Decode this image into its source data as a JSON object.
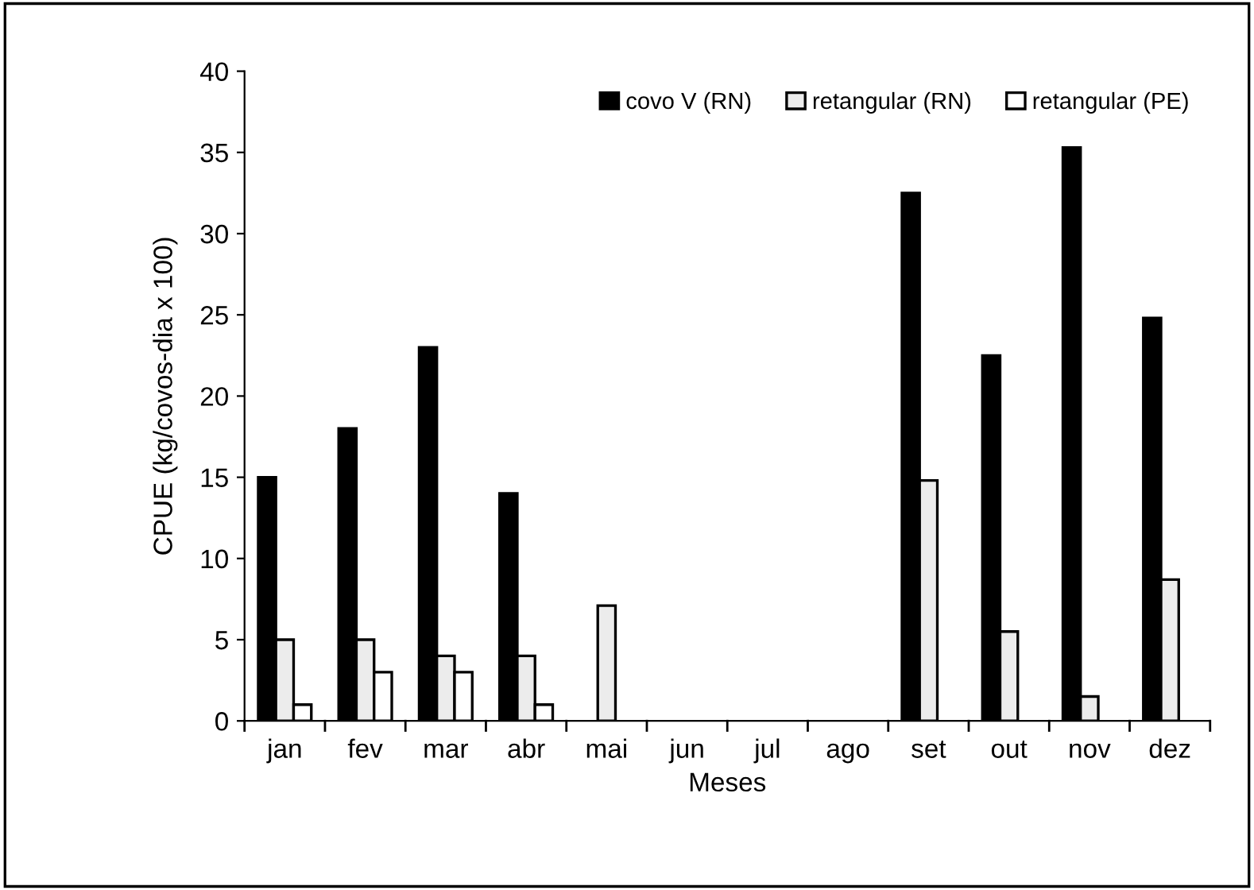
{
  "chart_data": {
    "type": "bar",
    "xlabel": "Meses",
    "ylabel": "CPUE (kg/covos-dia x 100)",
    "categories": [
      "jan",
      "fev",
      "mar",
      "abr",
      "mai",
      "jun",
      "jul",
      "ago",
      "set",
      "out",
      "nov",
      "dez"
    ],
    "series": [
      {
        "name": "covo V (RN)",
        "color": "#000000",
        "values": [
          15,
          18,
          23,
          14,
          null,
          null,
          null,
          null,
          32.5,
          22.5,
          35.3,
          24.8
        ]
      },
      {
        "name": "retangular (RN)",
        "color": "#ececec",
        "values": [
          5,
          5,
          4,
          4,
          7.1,
          null,
          null,
          null,
          14.8,
          5.5,
          1.5,
          8.7
        ]
      },
      {
        "name": "retangular (PE)",
        "color": "#ffffff",
        "values": [
          1,
          3,
          3,
          1,
          null,
          null,
          null,
          null,
          null,
          null,
          null,
          null
        ]
      }
    ],
    "ylim": [
      0,
      40
    ],
    "yticks": [
      0,
      5,
      10,
      15,
      20,
      25,
      30,
      35,
      40
    ],
    "grid": false,
    "legend": "top right"
  }
}
